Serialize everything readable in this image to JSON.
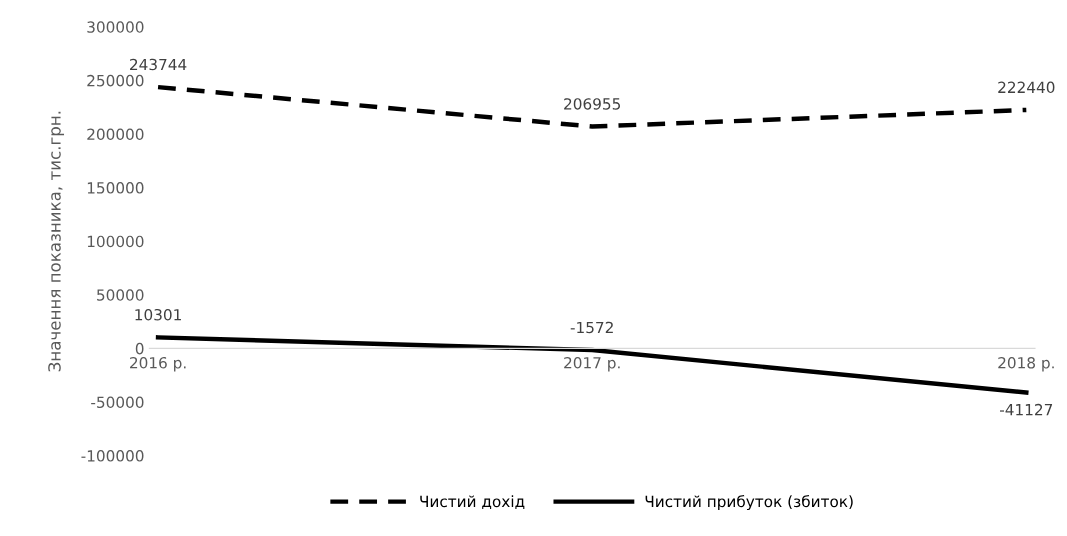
{
  "chart_data": {
    "type": "line",
    "ylabel": "Значення показника, тис.грн.",
    "categories": [
      "2016 р.",
      "2017 р.",
      "2018 р."
    ],
    "series": [
      {
        "name": "Чистий дохід",
        "color": "#000000",
        "line_style": "dashed",
        "values": [
          243744,
          206955,
          222440
        ]
      },
      {
        "name": "Чистий прибуток (збиток)",
        "color": "#000000",
        "line_style": "solid",
        "values": [
          10301,
          -1572,
          -41127
        ]
      }
    ],
    "ylim": [
      -100000,
      300000
    ],
    "yticks": [
      -100000,
      -50000,
      0,
      50000,
      100000,
      150000,
      200000,
      250000,
      300000
    ],
    "data_labels": true,
    "grid": false,
    "legend": "bottom"
  }
}
